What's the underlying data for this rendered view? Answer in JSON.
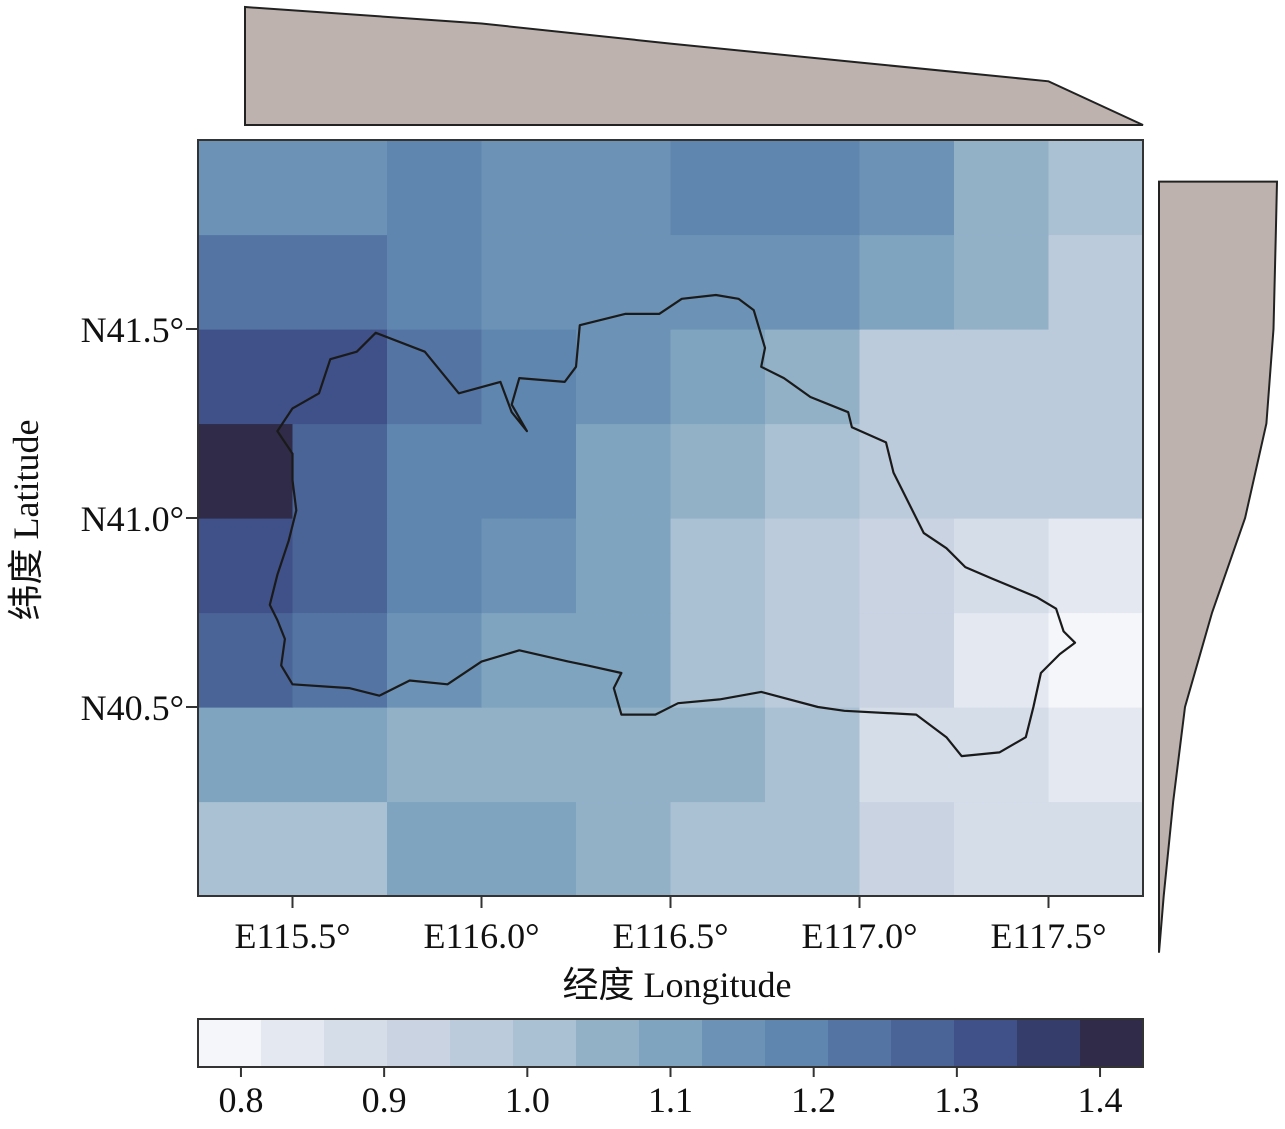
{
  "chart_data": {
    "type": "heatmap",
    "xlabel": "经度 Longitude",
    "ylabel": "纬度 Latitude",
    "xlim": [
      115.25,
      117.75
    ],
    "ylim": [
      40.0,
      42.0
    ],
    "x_tick_values": [
      115.5,
      116.0,
      116.5,
      117.0,
      117.5
    ],
    "x_tick_labels": [
      "E115.5°",
      "E116.0°",
      "E116.5°",
      "E117.0°",
      "E117.5°"
    ],
    "y_tick_values": [
      40.5,
      41.0,
      41.5
    ],
    "y_tick_labels": [
      "N40.5°",
      "N41.0°",
      "N41.5°"
    ],
    "grid": false,
    "colorbar": {
      "range": [
        0.77,
        1.43
      ],
      "ticks": [
        0.8,
        0.9,
        1.0,
        1.1,
        1.2,
        1.3,
        1.4
      ],
      "tick_labels": [
        "0.8",
        "0.9",
        "1.0",
        "1.1",
        "1.2",
        "1.3",
        "1.4"
      ],
      "colors": [
        "#f5f6fa",
        "#e3e8f1",
        "#d5dde9",
        "#c9d3e2",
        "#bccbdb",
        "#a9c1d2",
        "#92b1c7",
        "#7fa4bf",
        "#6c93b5",
        "#5f86ae",
        "#5475a4",
        "#4a6498",
        "#3f5188",
        "#353e6a",
        "#2f2b48"
      ]
    },
    "lon_edges": [
      115.25,
      115.5,
      115.75,
      116.0,
      116.25,
      116.5,
      116.75,
      117.0,
      117.25,
      117.5,
      117.75
    ],
    "lat_edges": [
      40.0,
      40.25,
      40.5,
      40.75,
      41.0,
      41.25,
      41.5,
      41.75,
      42.0
    ],
    "values": [
      [
        1.0,
        1.0,
        1.08,
        1.08,
        1.05,
        1.0,
        0.99,
        0.92,
        0.89,
        0.86
      ],
      [
        1.12,
        1.12,
        1.06,
        1.06,
        1.04,
        1.04,
        0.99,
        0.88,
        0.86,
        0.84
      ],
      [
        1.26,
        1.24,
        1.14,
        1.12,
        1.08,
        0.99,
        0.95,
        0.92,
        0.84,
        0.78
      ],
      [
        1.34,
        1.27,
        1.18,
        1.16,
        1.08,
        0.99,
        0.95,
        0.92,
        0.89,
        0.82
      ],
      [
        1.4,
        1.29,
        1.2,
        1.18,
        1.12,
        1.05,
        1.0,
        0.98,
        0.96,
        0.95
      ],
      [
        1.3,
        1.3,
        1.22,
        1.2,
        1.14,
        1.08,
        1.05,
        0.98,
        0.98,
        0.98
      ],
      [
        1.23,
        1.23,
        1.18,
        1.16,
        1.16,
        1.14,
        1.14,
        1.12,
        1.06,
        0.98
      ],
      [
        1.14,
        1.14,
        1.19,
        1.16,
        1.16,
        1.17,
        1.17,
        1.14,
        1.07,
        0.99
      ]
    ],
    "marginal_top": {
      "x": [
        115.5,
        116.0,
        116.5,
        117.0,
        117.5,
        117.75
      ],
      "density": [
        1.0,
        0.86,
        0.69,
        0.53,
        0.37,
        0.0
      ]
    },
    "marginal_right": {
      "y": [
        41.89,
        41.75,
        41.5,
        41.25,
        41.0,
        40.75,
        40.5,
        40.25,
        40.0,
        39.85
      ],
      "density": [
        1.0,
        0.99,
        0.97,
        0.91,
        0.73,
        0.45,
        0.22,
        0.12,
        0.04,
        0.0
      ]
    },
    "series": [
      {
        "boundary": [
          [
            115.72,
            41.49
          ],
          [
            115.85,
            41.44
          ],
          [
            115.94,
            41.33
          ],
          [
            116.05,
            41.36
          ],
          [
            116.08,
            41.28
          ],
          [
            116.12,
            41.23
          ],
          [
            116.08,
            41.3
          ],
          [
            116.1,
            41.37
          ],
          [
            116.22,
            41.36
          ],
          [
            116.25,
            41.4
          ],
          [
            116.26,
            41.51
          ],
          [
            116.38,
            41.54
          ],
          [
            116.47,
            41.54
          ],
          [
            116.53,
            41.58
          ],
          [
            116.62,
            41.59
          ],
          [
            116.68,
            41.58
          ],
          [
            116.72,
            41.55
          ],
          [
            116.75,
            41.45
          ],
          [
            116.74,
            41.4
          ],
          [
            116.8,
            41.37
          ],
          [
            116.87,
            41.32
          ],
          [
            116.97,
            41.28
          ],
          [
            116.98,
            41.24
          ],
          [
            117.07,
            41.2
          ],
          [
            117.09,
            41.12
          ],
          [
            117.11,
            41.08
          ],
          [
            117.17,
            40.96
          ],
          [
            117.23,
            40.92
          ],
          [
            117.28,
            40.87
          ],
          [
            117.35,
            40.84
          ],
          [
            117.47,
            40.79
          ],
          [
            117.52,
            40.76
          ],
          [
            117.54,
            40.7
          ],
          [
            117.57,
            40.67
          ],
          [
            117.53,
            40.64
          ],
          [
            117.48,
            40.59
          ],
          [
            117.46,
            40.5
          ],
          [
            117.44,
            40.42
          ],
          [
            117.37,
            40.38
          ],
          [
            117.27,
            40.37
          ],
          [
            117.23,
            40.42
          ],
          [
            117.15,
            40.48
          ],
          [
            116.96,
            40.49
          ],
          [
            116.89,
            40.5
          ],
          [
            116.74,
            40.54
          ],
          [
            116.63,
            40.52
          ],
          [
            116.52,
            40.51
          ],
          [
            116.46,
            40.48
          ],
          [
            116.37,
            40.48
          ],
          [
            116.35,
            40.55
          ],
          [
            116.37,
            40.59
          ],
          [
            116.28,
            40.61
          ],
          [
            116.23,
            40.62
          ],
          [
            116.1,
            40.65
          ],
          [
            116.0,
            40.62
          ],
          [
            115.91,
            40.56
          ],
          [
            115.81,
            40.57
          ],
          [
            115.73,
            40.53
          ],
          [
            115.65,
            40.55
          ],
          [
            115.5,
            40.56
          ],
          [
            115.47,
            40.61
          ],
          [
            115.48,
            40.68
          ],
          [
            115.46,
            40.73
          ],
          [
            115.44,
            40.77
          ],
          [
            115.46,
            40.85
          ],
          [
            115.49,
            40.94
          ],
          [
            115.51,
            41.02
          ],
          [
            115.5,
            41.1
          ],
          [
            115.5,
            41.17
          ],
          [
            115.46,
            41.23
          ],
          [
            115.5,
            41.29
          ],
          [
            115.57,
            41.33
          ],
          [
            115.6,
            41.42
          ],
          [
            115.67,
            41.44
          ],
          [
            115.72,
            41.49
          ]
        ]
      }
    ]
  }
}
